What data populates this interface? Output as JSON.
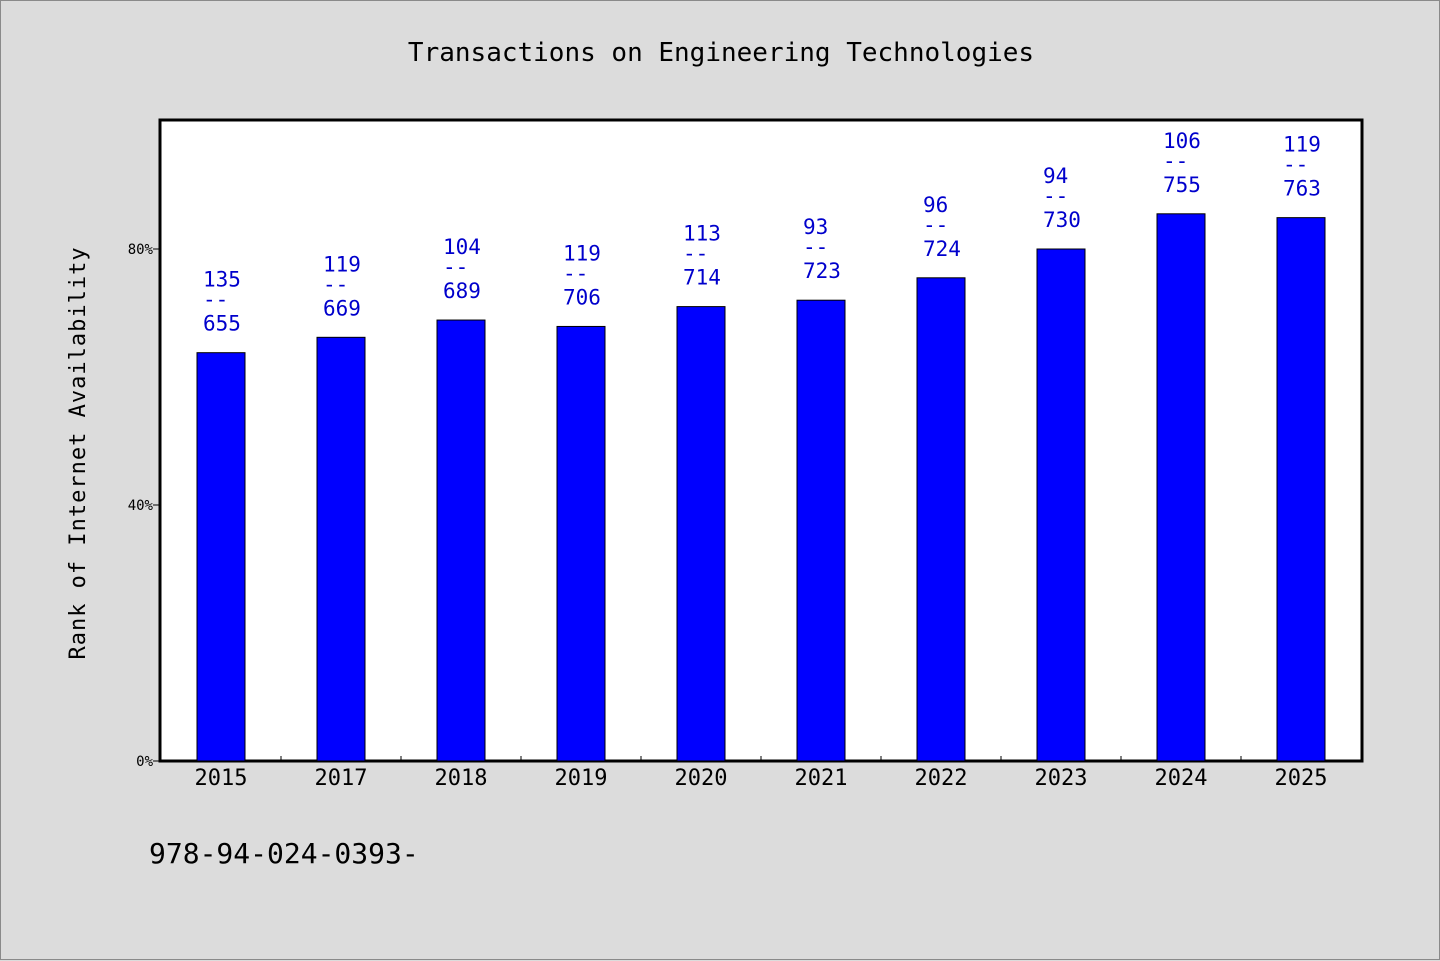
{
  "chart_data": {
    "type": "bar",
    "title": "Transactions on Engineering Technologies",
    "xlabel": "",
    "ylabel": "Rank of Internet Availability",
    "categories": [
      "2015",
      "2017",
      "2018",
      "2019",
      "2020",
      "2021",
      "2022",
      "2023",
      "2024",
      "2025"
    ],
    "values": [
      63.8,
      66.2,
      68.9,
      67.9,
      71.0,
      72.0,
      75.5,
      80.0,
      85.5,
      84.9
    ],
    "ylim": [
      0,
      100
    ],
    "yticks": [
      0,
      40,
      80
    ],
    "ytick_labels": [
      "0%",
      "40%",
      "80%"
    ],
    "bar_labels": [
      {
        "top": "135",
        "sep": "--",
        "bottom": "655"
      },
      {
        "top": "119",
        "sep": "--",
        "bottom": "669"
      },
      {
        "top": "104",
        "sep": "--",
        "bottom": "689"
      },
      {
        "top": "119",
        "sep": "--",
        "bottom": "706"
      },
      {
        "top": "113",
        "sep": "--",
        "bottom": "714"
      },
      {
        "top": "93",
        "sep": "--",
        "bottom": "723"
      },
      {
        "top": "96",
        "sep": "--",
        "bottom": "724"
      },
      {
        "top": "94",
        "sep": "--",
        "bottom": "730"
      },
      {
        "top": "106",
        "sep": "--",
        "bottom": "755"
      },
      {
        "top": "119",
        "sep": "--",
        "bottom": "763"
      }
    ],
    "bar_color": "#0000ff",
    "label_color": "#0000cc",
    "grid": false,
    "legend": "none"
  },
  "footer": {
    "text": "978-94-024-0393-"
  }
}
